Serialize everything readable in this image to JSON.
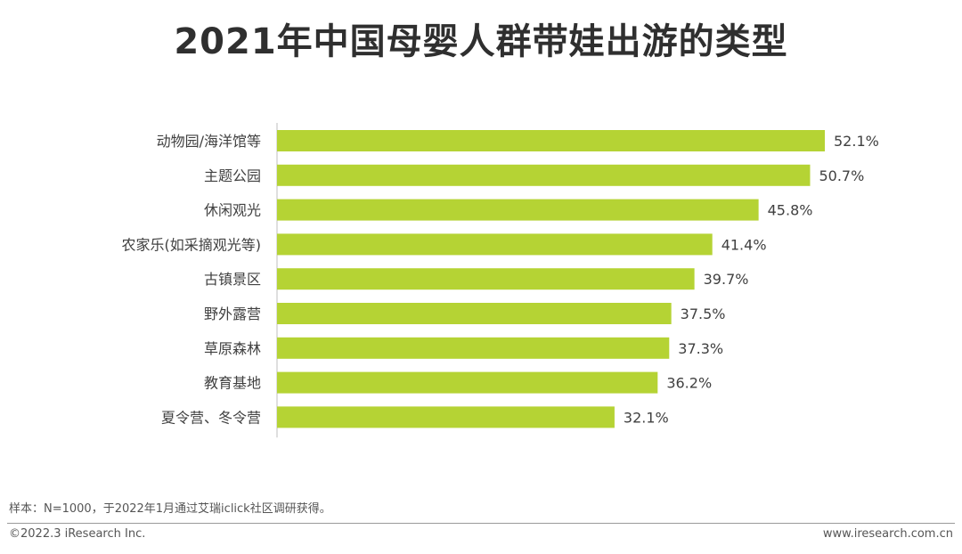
{
  "page": {
    "title": "2021年中国母婴人群带娃出游的类型",
    "note": "样本：N=1000，于2022年1月通过艾瑞iclick社区调研获得。",
    "copyright": "©2022.3 iResearch Inc.",
    "website": "www.iresearch.com.cn"
  },
  "chart_data": {
    "type": "bar",
    "orientation": "horizontal",
    "categories": [
      "动物园/海洋馆等",
      "主题公园",
      "休闲观光",
      "农家乐(如采摘观光等)",
      "古镇景区",
      "野外露营",
      "草原森林",
      "教育基地",
      "夏令营、冬令营"
    ],
    "values": [
      52.1,
      50.7,
      45.8,
      41.4,
      39.7,
      37.5,
      37.3,
      36.2,
      32.1
    ],
    "value_labels": [
      "52.1%",
      "50.7%",
      "45.8%",
      "41.4%",
      "39.7%",
      "37.5%",
      "37.3%",
      "36.2%",
      "32.1%"
    ],
    "unit": "%",
    "xlim": [
      0,
      52.1
    ],
    "grid": false,
    "bar_color": "#b5d334"
  }
}
